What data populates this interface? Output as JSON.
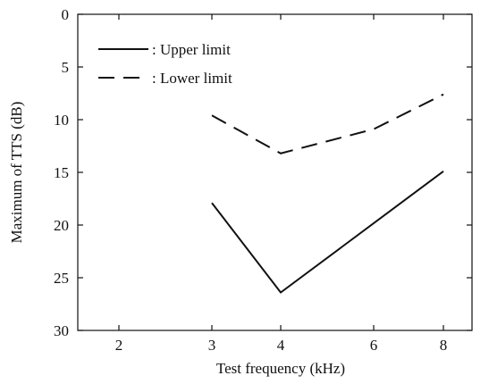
{
  "chart_data": {
    "type": "line",
    "xlabel": "Test frequency  (kHz)",
    "ylabel": "Maximum of TTS  (dB)",
    "categories": [
      "2",
      "3",
      "4",
      "6",
      "8"
    ],
    "ylim": [
      0,
      30
    ],
    "y_inverted": true,
    "yticks": [
      "0",
      "5",
      "10",
      "15",
      "20",
      "25",
      "30"
    ],
    "grid": false,
    "legend_position": "top-left",
    "series": [
      {
        "name": ": Upper limit",
        "style": "solid",
        "color": "#111111",
        "points": [
          {
            "x": "3",
            "y": 17.9
          },
          {
            "x": "4",
            "y": 26.4
          },
          {
            "x": "8",
            "y": 14.9
          }
        ]
      },
      {
        "name": ": Lower limit",
        "style": "dashed",
        "color": "#111111",
        "points": [
          {
            "x": "3",
            "y": 9.6
          },
          {
            "x": "4",
            "y": 13.2
          },
          {
            "x": "6",
            "y": 10.9
          },
          {
            "x": "8",
            "y": 7.6
          }
        ]
      }
    ]
  }
}
